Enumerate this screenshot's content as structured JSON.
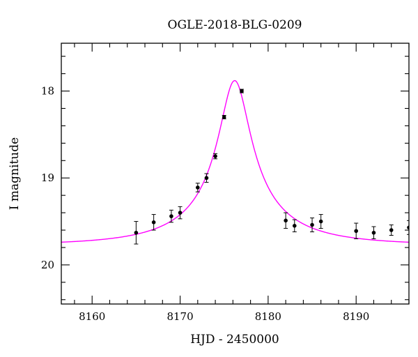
{
  "chart_data": {
    "type": "scatter",
    "title": "OGLE-2018-BLG-0209",
    "xlabel": "HJD - 2450000",
    "ylabel": "I magnitude",
    "xlim": [
      8156.5,
      8196
    ],
    "ylim": [
      20.45,
      17.45
    ],
    "y_inverted": true,
    "x_ticks": [
      8160,
      8170,
      8180,
      8190
    ],
    "y_ticks": [
      18,
      19,
      20
    ],
    "grid": false,
    "series": [
      {
        "kind": "data-points",
        "color": "#000000",
        "points": [
          {
            "x": 8165.0,
            "y": 19.63,
            "err": 0.13
          },
          {
            "x": 8167.0,
            "y": 19.51,
            "err": 0.09
          },
          {
            "x": 8169.0,
            "y": 19.44,
            "err": 0.07
          },
          {
            "x": 8170.0,
            "y": 19.4,
            "err": 0.07
          },
          {
            "x": 8172.0,
            "y": 19.11,
            "err": 0.05
          },
          {
            "x": 8173.0,
            "y": 19.0,
            "err": 0.05
          },
          {
            "x": 8174.0,
            "y": 18.75,
            "err": 0.03
          },
          {
            "x": 8175.0,
            "y": 18.3,
            "err": 0.02
          },
          {
            "x": 8177.0,
            "y": 18.0,
            "err": 0.02
          },
          {
            "x": 8182.0,
            "y": 19.49,
            "err": 0.09
          },
          {
            "x": 8183.0,
            "y": 19.55,
            "err": 0.07
          },
          {
            "x": 8185.0,
            "y": 19.54,
            "err": 0.08
          },
          {
            "x": 8186.0,
            "y": 19.5,
            "err": 0.08
          },
          {
            "x": 8190.0,
            "y": 19.61,
            "err": 0.09
          },
          {
            "x": 8192.0,
            "y": 19.63,
            "err": 0.07
          },
          {
            "x": 8194.0,
            "y": 19.6,
            "err": 0.06
          },
          {
            "x": 8196.0,
            "y": 19.57,
            "err": 0.08
          }
        ]
      },
      {
        "kind": "model-curve",
        "color": "#ff00ff",
        "peak_time": 8176.2,
        "peak_mag": 17.88,
        "baseline_mag": 19.77,
        "u0": 0.17,
        "tE": 11
      }
    ]
  }
}
